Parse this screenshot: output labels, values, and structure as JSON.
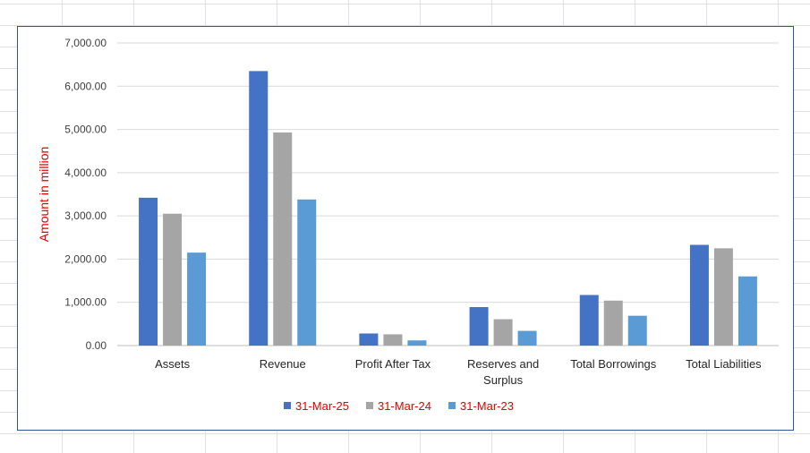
{
  "chart_data": {
    "type": "bar",
    "title": "",
    "xlabel": "",
    "ylabel": "Amount in million",
    "ylim": [
      0,
      7000
    ],
    "yticks": [
      0,
      1000,
      2000,
      3000,
      4000,
      5000,
      6000,
      7000
    ],
    "ytick_labels": [
      "0.00",
      "1,000.00",
      "2,000.00",
      "3,000.00",
      "4,000.00",
      "5,000.00",
      "6,000.00",
      "7,000.00"
    ],
    "grid": "horizontal",
    "legend_position": "bottom",
    "categories": [
      [
        "Assets"
      ],
      [
        "Revenue"
      ],
      [
        "Profit After Tax"
      ],
      [
        "Reserves and",
        "Surplus"
      ],
      [
        "Total Borrowings"
      ],
      [
        "Total Liabilities"
      ]
    ],
    "series": [
      {
        "name": "31-Mar-25",
        "color": "#4472c4",
        "values": [
          3420,
          6350,
          280,
          890,
          1170,
          2330
        ]
      },
      {
        "name": "31-Mar-24",
        "color": "#a5a5a5",
        "values": [
          3050,
          4930,
          260,
          610,
          1040,
          2250
        ]
      },
      {
        "name": "31-Mar-23",
        "color": "#5b9bd5",
        "values": [
          2150,
          3380,
          120,
          340,
          690,
          1600
        ]
      }
    ]
  }
}
